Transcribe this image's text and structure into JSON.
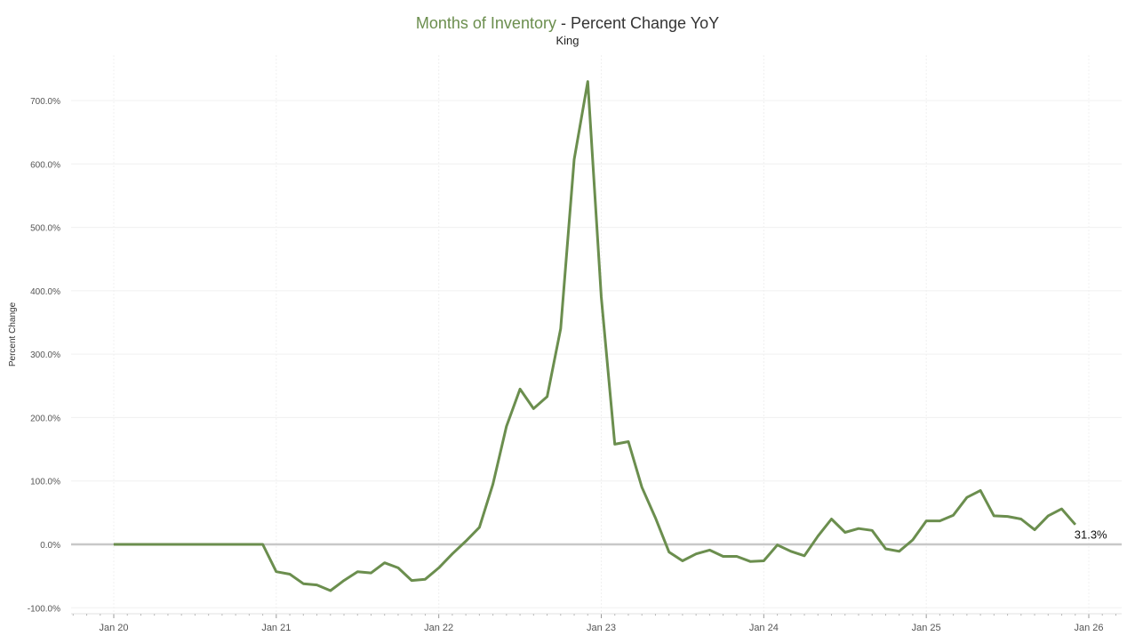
{
  "chart_data": {
    "type": "line",
    "title_highlight": "Months of Inventory",
    "title_rest": " - Percent Change YoY",
    "subtitle": "King",
    "ylabel": "Percent Change",
    "xlabel": "",
    "ylim": [
      -105,
      770
    ],
    "yticks": [
      -100,
      0,
      100,
      200,
      300,
      400,
      500,
      600,
      700
    ],
    "ytick_labels": [
      "-100.0%",
      "0.0%",
      "100.0%",
      "200.0%",
      "300.0%",
      "400.0%",
      "500.0%",
      "600.0%",
      "700.0%"
    ],
    "xtick_labels": [
      "Jan 20",
      "Jan 21",
      "Jan 22",
      "Jan 23",
      "Jan 24",
      "Jan 25",
      "Jan 26"
    ],
    "x_start": "2020-01",
    "x_interval": "month",
    "grid": true,
    "series": [
      {
        "name": "Months of Inventory",
        "color": "#6b8e4e",
        "values": [
          0,
          0,
          0,
          0,
          0,
          0,
          0,
          0,
          0,
          0,
          0,
          0,
          -43,
          -47,
          -62,
          -64,
          -73,
          -57,
          -43,
          -45,
          -29,
          -37,
          -57,
          -55,
          -37,
          -15,
          5,
          27,
          95,
          186,
          245,
          214,
          233,
          340,
          607,
          730,
          390,
          158,
          162,
          90,
          42,
          -12,
          -26,
          -15,
          -9,
          -19,
          -19,
          -27,
          -26,
          -1,
          -11,
          -18,
          13,
          40,
          19,
          25,
          22,
          -7,
          -11,
          7,
          37,
          37,
          46,
          74,
          85,
          45,
          44,
          40,
          23,
          45,
          56,
          31.3
        ]
      }
    ],
    "end_label": "31.3%",
    "zero_line_color": "#c8c8c8"
  }
}
